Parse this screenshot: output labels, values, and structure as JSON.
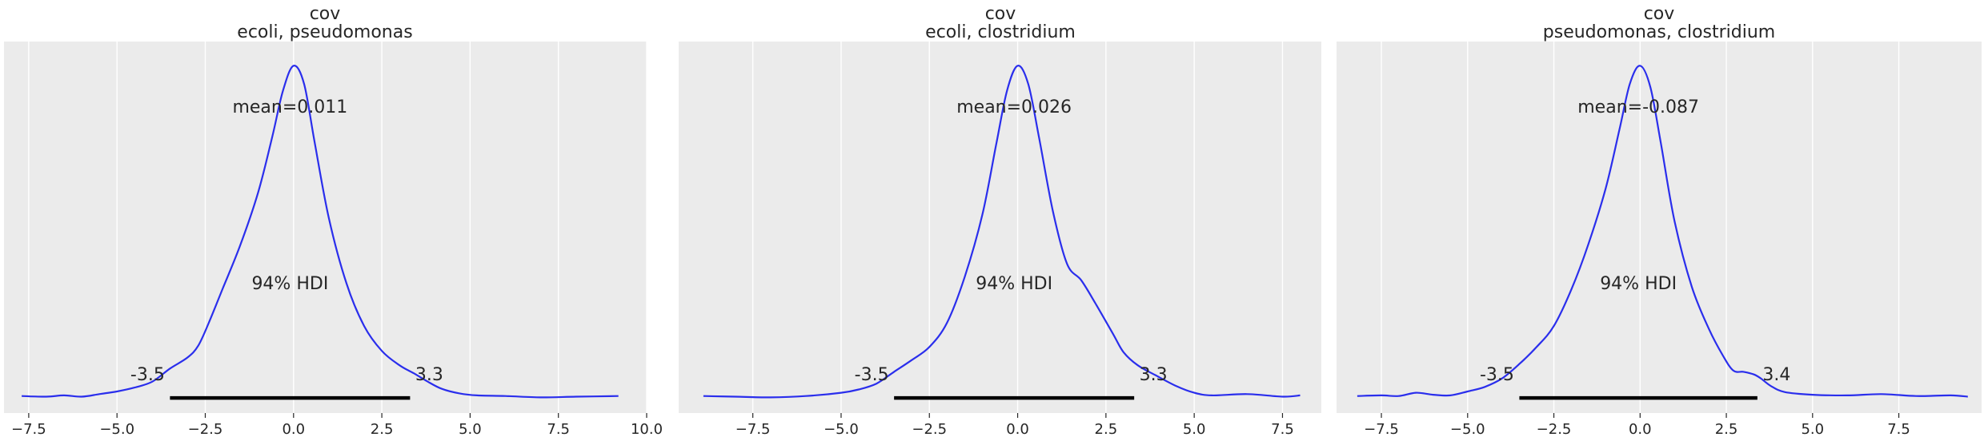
{
  "figure": {
    "background": "#ffffff",
    "plot_background": "#ebebeb",
    "grid_color": "#ffffff"
  },
  "chart_data": [
    {
      "type": "line",
      "title": "cov\necoli, pseudomonas",
      "title_lines": [
        "cov",
        "ecoli, pseudomonas"
      ],
      "xlabel": "",
      "ylabel": "",
      "grid": true,
      "xlim": [
        -8.2,
        10.0
      ],
      "ylim": [
        -0.023,
        0.545
      ],
      "xticks": [
        -7.5,
        -5.0,
        -2.5,
        0.0,
        2.5,
        5.0,
        7.5,
        10.0
      ],
      "xtick_labels": [
        "−7.5",
        "−5.0",
        "−2.5",
        "0.0",
        "2.5",
        "5.0",
        "7.5",
        "10.0"
      ],
      "show_y_ticks": false,
      "line_color": "#2a2eec",
      "hdi_color": "#000000",
      "mean_label": "mean=0.011",
      "hdi_label": "94% HDI",
      "hdi": [
        -3.5,
        3.3
      ],
      "hdi_low_label": "-3.5",
      "hdi_high_label": "3.3",
      "series": [
        {
          "x": [
            -7.7,
            -7.0,
            -6.5,
            -6.0,
            -5.5,
            -5.0,
            -4.5,
            -4.0,
            -3.5,
            -3.0,
            -2.7,
            -2.4,
            -2.0,
            -1.5,
            -1.0,
            -0.6,
            -0.3,
            0.0,
            0.3,
            0.6,
            1.0,
            1.5,
            2.0,
            2.5,
            3.0,
            3.4,
            3.8,
            4.2,
            4.7,
            5.2,
            6.0,
            7.0,
            8.0,
            9.2
          ],
          "y": [
            0.003,
            0.002,
            0.004,
            0.002,
            0.006,
            0.01,
            0.016,
            0.025,
            0.045,
            0.062,
            0.08,
            0.115,
            0.168,
            0.235,
            0.315,
            0.4,
            0.47,
            0.508,
            0.48,
            0.39,
            0.275,
            0.175,
            0.11,
            0.072,
            0.05,
            0.038,
            0.025,
            0.014,
            0.007,
            0.004,
            0.003,
            0.001,
            0.002,
            0.003
          ]
        }
      ]
    },
    {
      "type": "line",
      "title": "cov\necoli, clostridium",
      "title_lines": [
        "cov",
        "ecoli, clostridium"
      ],
      "xlabel": "",
      "ylabel": "",
      "grid": true,
      "xlim": [
        -9.6,
        8.6
      ],
      "ylim": [
        -0.023,
        0.545
      ],
      "xticks": [
        -7.5,
        -5.0,
        -2.5,
        0.0,
        2.5,
        5.0,
        7.5
      ],
      "xtick_labels": [
        "−7.5",
        "−5.0",
        "−2.5",
        "0.0",
        "2.5",
        "5.0",
        "7.5"
      ],
      "show_y_ticks": false,
      "line_color": "#2a2eec",
      "hdi_color": "#000000",
      "mean_label": "mean=0.026",
      "hdi_label": "94% HDI",
      "hdi": [
        -3.5,
        3.3
      ],
      "hdi_low_label": "-3.5",
      "hdi_high_label": "3.3",
      "series": [
        {
          "x": [
            -8.9,
            -8.0,
            -7.0,
            -6.0,
            -5.0,
            -4.5,
            -4.0,
            -3.5,
            -3.0,
            -2.5,
            -2.0,
            -1.5,
            -1.0,
            -0.6,
            -0.3,
            0.0,
            0.3,
            0.6,
            1.0,
            1.4,
            1.8,
            2.2,
            2.7,
            3.0,
            3.4,
            3.9,
            4.5,
            5.0,
            5.5,
            6.5,
            7.5,
            8.0
          ],
          "y": [
            0.003,
            0.002,
            0.001,
            0.003,
            0.008,
            0.013,
            0.022,
            0.04,
            0.058,
            0.078,
            0.115,
            0.185,
            0.28,
            0.39,
            0.47,
            0.508,
            0.48,
            0.4,
            0.285,
            0.205,
            0.18,
            0.145,
            0.098,
            0.07,
            0.05,
            0.035,
            0.018,
            0.008,
            0.004,
            0.006,
            0.002,
            0.004
          ]
        }
      ]
    },
    {
      "type": "line",
      "title": "cov\npseudomonas, clostridium",
      "title_lines": [
        "cov",
        "pseudomonas, clostridium"
      ],
      "xlabel": "",
      "ylabel": "",
      "grid": true,
      "xlim": [
        -8.8,
        9.9
      ],
      "ylim": [
        -0.023,
        0.545
      ],
      "xticks": [
        -7.5,
        -5.0,
        -2.5,
        0.0,
        2.5,
        5.0,
        7.5
      ],
      "xtick_labels": [
        "−7.5",
        "−5.0",
        "−2.5",
        "0.0",
        "2.5",
        "5.0",
        "7.5"
      ],
      "show_y_ticks": false,
      "line_color": "#2a2eec",
      "hdi_color": "#000000",
      "mean_label": "mean=-0.087",
      "hdi_label": "94% HDI",
      "hdi": [
        -3.5,
        3.4
      ],
      "hdi_low_label": "-3.5",
      "hdi_high_label": "3.4",
      "series": [
        {
          "x": [
            -8.2,
            -7.5,
            -7.0,
            -6.5,
            -6.0,
            -5.5,
            -5.0,
            -4.5,
            -4.0,
            -3.5,
            -3.0,
            -2.5,
            -2.0,
            -1.5,
            -1.0,
            -0.6,
            -0.3,
            0.0,
            0.3,
            0.6,
            1.0,
            1.5,
            2.0,
            2.4,
            2.7,
            3.0,
            3.3,
            3.5,
            3.8,
            4.2,
            5.0,
            6.0,
            7.0,
            8.0,
            9.0,
            9.5
          ],
          "y": [
            0.003,
            0.004,
            0.003,
            0.008,
            0.005,
            0.004,
            0.01,
            0.017,
            0.03,
            0.052,
            0.078,
            0.11,
            0.165,
            0.235,
            0.32,
            0.41,
            0.48,
            0.508,
            0.475,
            0.39,
            0.27,
            0.17,
            0.105,
            0.065,
            0.042,
            0.04,
            0.036,
            0.03,
            0.018,
            0.009,
            0.005,
            0.004,
            0.006,
            0.003,
            0.004,
            0.002
          ]
        }
      ]
    }
  ]
}
